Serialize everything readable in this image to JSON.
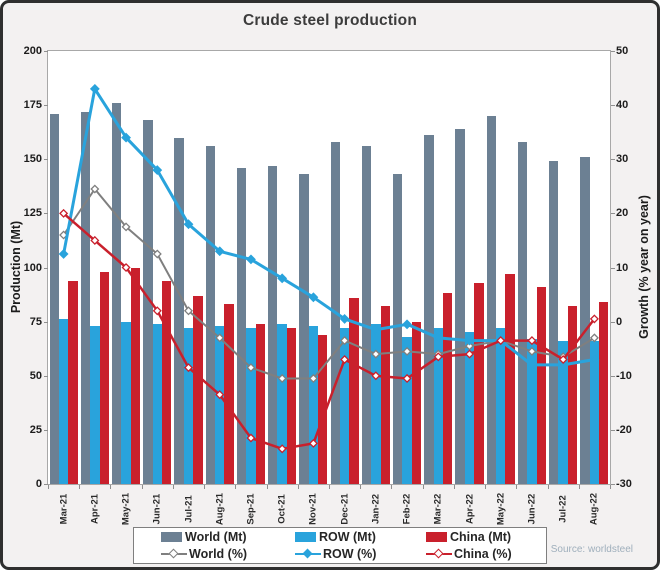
{
  "chart_data": {
    "type": "bar+line",
    "title": "Crude steel production",
    "source": "Source: worldsteel",
    "categories": [
      "Mar-21",
      "Apr-21",
      "May-21",
      "Jun-21",
      "Jul-21",
      "Aug-21",
      "Sep-21",
      "Oct-21",
      "Nov-21",
      "Dec-21",
      "Jan-22",
      "Feb-22",
      "Mar-22",
      "Apr-22",
      "May-22",
      "Jun-22",
      "Jul-22",
      "Aug-22"
    ],
    "left_axis": {
      "label": "Production (Mt)",
      "min": 0,
      "max": 200,
      "ticks": [
        200,
        175,
        150,
        125,
        100,
        75,
        50,
        25,
        0
      ]
    },
    "right_axis": {
      "label": "Growth (% year on year)",
      "min": -30,
      "max": 50,
      "ticks": [
        50,
        40,
        30,
        20,
        10,
        0,
        -10,
        -20,
        -30
      ]
    },
    "grid": "off",
    "legend_position": "bottom-box",
    "bar_series": [
      {
        "name": "World (Mt)",
        "color": "#6C8093",
        "values": [
          171,
          172,
          176,
          168,
          160,
          156,
          146,
          147,
          143,
          158,
          156,
          143,
          161,
          164,
          170,
          158,
          149,
          151
        ]
      },
      {
        "name": "ROW (Mt)",
        "color": "#29A3DC",
        "values": [
          76,
          73,
          75,
          74,
          72,
          73,
          72,
          74,
          73,
          72,
          74,
          68,
          72,
          70,
          72,
          67,
          66,
          66
        ]
      },
      {
        "name": "China (Mt)",
        "color": "#C9202C",
        "values": [
          94,
          98,
          100,
          94,
          87,
          83,
          74,
          72,
          69,
          86,
          82,
          75,
          88,
          93,
          97,
          91,
          82,
          84
        ]
      }
    ],
    "line_series": [
      {
        "name": "World (%)",
        "color": "#7F7F7F",
        "marker": "open-diamond",
        "stroke": 2,
        "values": [
          16,
          24.5,
          17.5,
          12.5,
          2,
          -3,
          -8.5,
          -10.5,
          -10.5,
          -3.5,
          -6,
          -5.5,
          -6,
          -4.5,
          -3.5,
          -5.5,
          -6.5,
          -3
        ]
      },
      {
        "name": "ROW (%)",
        "color": "#29A3DC",
        "marker": "filled-diamond",
        "stroke": 3,
        "values": [
          12.5,
          43,
          34,
          28,
          18,
          13,
          11.5,
          8,
          4.5,
          0.5,
          -1.5,
          -0.5,
          -3,
          -3.5,
          -3.5,
          -8,
          -8,
          -7
        ]
      },
      {
        "name": "China (%)",
        "color": "#C9202C",
        "marker": "open-diamond",
        "stroke": 2.5,
        "values": [
          20,
          15,
          10,
          2,
          -8.5,
          -13.5,
          -21.5,
          -23.5,
          -22.5,
          -7,
          -10,
          -10.5,
          -6.5,
          -6,
          -3.5,
          -3.5,
          -7,
          0.5
        ]
      }
    ]
  }
}
